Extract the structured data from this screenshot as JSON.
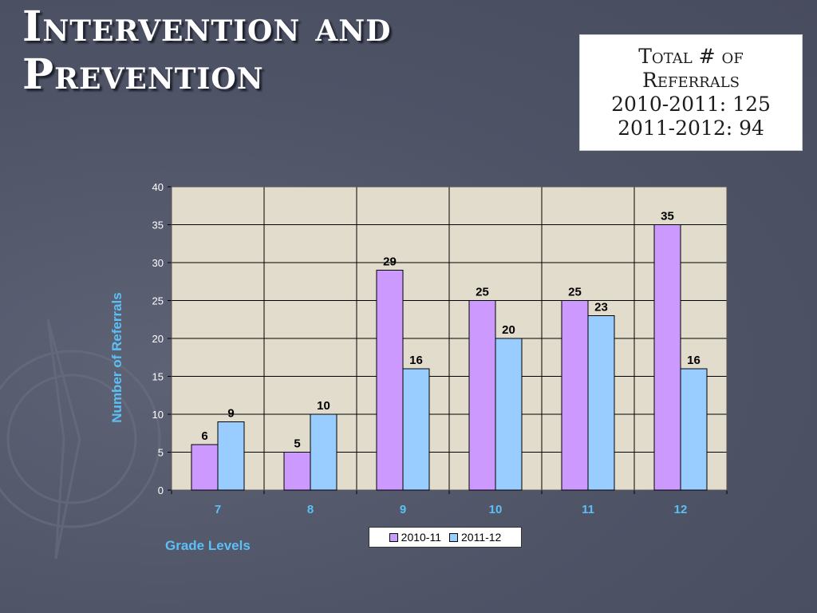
{
  "slide": {
    "title_line1": "Intervention and",
    "title_line2": "Prevention",
    "total_box": {
      "label_line1": "Total # of",
      "label_line2": "Referrals",
      "line3": "2010-2011: 125",
      "line4": "2011-2012: 94"
    }
  },
  "colors": {
    "series_2010": "#cc99ff",
    "series_2011": "#99ccff",
    "plot_background": "#e2dccc",
    "axis_label": "#5bc0f5",
    "tick_label": "#ffffff"
  },
  "chart_data": {
    "type": "bar",
    "title": "",
    "xlabel": "Grade Levels",
    "ylabel": "Number of Referrals",
    "categories": [
      "7",
      "8",
      "9",
      "10",
      "11",
      "12"
    ],
    "series": [
      {
        "name": "2010-11",
        "values": [
          6,
          5,
          29,
          25,
          25,
          35
        ]
      },
      {
        "name": "2011-12",
        "values": [
          9,
          10,
          16,
          20,
          23,
          16
        ]
      }
    ],
    "ylim": [
      0,
      40
    ],
    "yticks": [
      0,
      5,
      10,
      15,
      20,
      25,
      30,
      35,
      40
    ],
    "grid": true,
    "legend": "bottom"
  }
}
